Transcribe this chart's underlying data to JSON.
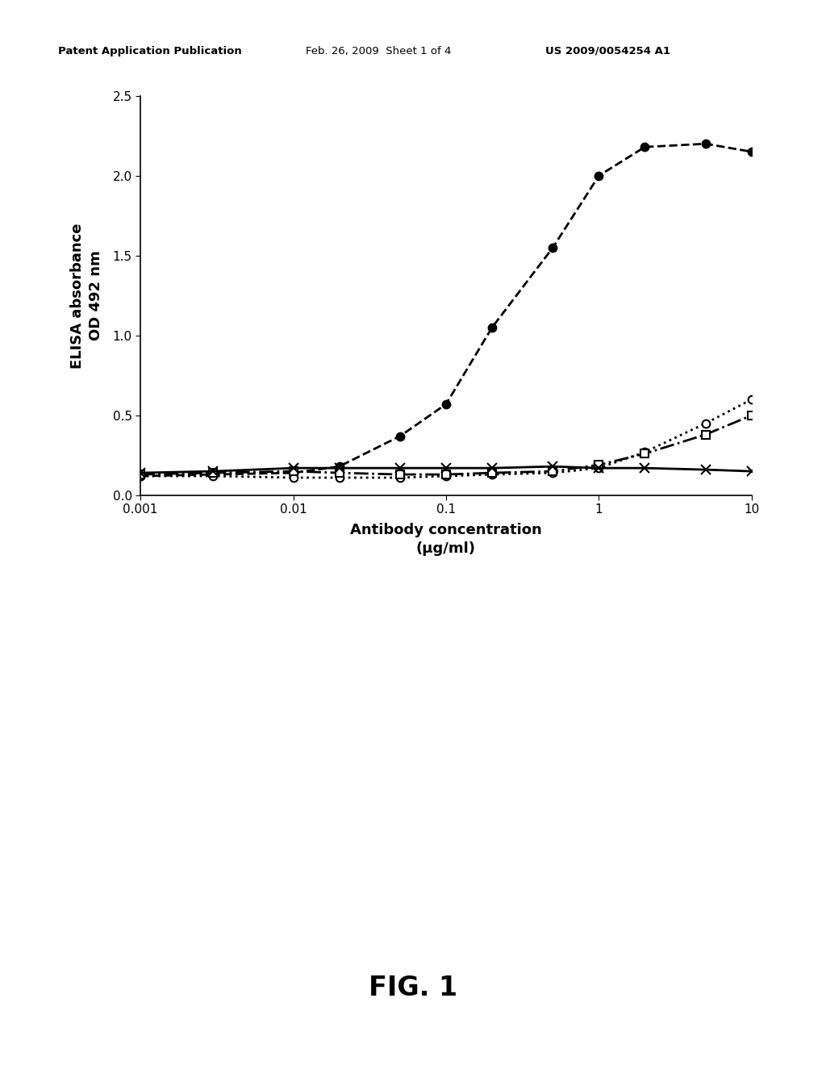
{
  "header_left": "Patent Application Publication",
  "header_mid": "Feb. 26, 2009  Sheet 1 of 4",
  "header_right": "US 2009/0054254 A1",
  "figure_label": "FIG. 1",
  "ylabel_line1": "ELISA absorbance",
  "ylabel_line2": "OD 492 nm",
  "xlabel_line1": "Antibody concentration",
  "xlabel_line2": "(μg/ml)",
  "ylim": [
    0.0,
    2.5
  ],
  "yticks": [
    0.0,
    0.5,
    1.0,
    1.5,
    2.0,
    2.5
  ],
  "series": [
    {
      "name": "filled_circle_dashed",
      "x": [
        0.001,
        0.003,
        0.01,
        0.02,
        0.05,
        0.1,
        0.2,
        0.5,
        1.0,
        2.0,
        5.0,
        10.0
      ],
      "y": [
        0.12,
        0.13,
        0.14,
        0.18,
        0.37,
        0.57,
        1.05,
        1.55,
        2.0,
        2.18,
        2.2,
        2.15
      ],
      "color": "#000000",
      "linestyle": "--",
      "marker": "o",
      "markerfacecolor": "#000000",
      "markersize": 7,
      "linewidth": 2.0
    },
    {
      "name": "open_circle_dotted",
      "x": [
        0.001,
        0.003,
        0.01,
        0.02,
        0.05,
        0.1,
        0.2,
        0.5,
        1.0,
        2.0,
        5.0,
        10.0
      ],
      "y": [
        0.12,
        0.12,
        0.11,
        0.11,
        0.11,
        0.12,
        0.13,
        0.14,
        0.17,
        0.27,
        0.45,
        0.6
      ],
      "color": "#000000",
      "linestyle": ":",
      "marker": "o",
      "markerfacecolor": "#ffffff",
      "markersize": 7,
      "linewidth": 2.0
    },
    {
      "name": "open_square_dashdot",
      "x": [
        0.001,
        0.003,
        0.01,
        0.02,
        0.05,
        0.1,
        0.2,
        0.5,
        1.0,
        2.0,
        5.0,
        10.0
      ],
      "y": [
        0.13,
        0.14,
        0.15,
        0.14,
        0.13,
        0.13,
        0.14,
        0.15,
        0.19,
        0.26,
        0.38,
        0.5
      ],
      "color": "#000000",
      "linestyle": "-.",
      "marker": "s",
      "markerfacecolor": "#ffffff",
      "markersize": 7,
      "linewidth": 2.0
    },
    {
      "name": "x_solid",
      "x": [
        0.001,
        0.003,
        0.01,
        0.02,
        0.05,
        0.1,
        0.2,
        0.5,
        1.0,
        2.0,
        5.0,
        10.0
      ],
      "y": [
        0.14,
        0.15,
        0.17,
        0.17,
        0.17,
        0.17,
        0.17,
        0.18,
        0.17,
        0.17,
        0.16,
        0.15
      ],
      "color": "#000000",
      "linestyle": "-",
      "marker": "x",
      "markerfacecolor": "#000000",
      "markersize": 8,
      "linewidth": 2.0
    }
  ],
  "background_color": "#ffffff",
  "plot_bg_color": "#ffffff",
  "header_fontsize": 9.5,
  "ylabel_fontsize": 13,
  "xlabel_fontsize": 13,
  "tick_fontsize": 11,
  "figlabel_fontsize": 24
}
